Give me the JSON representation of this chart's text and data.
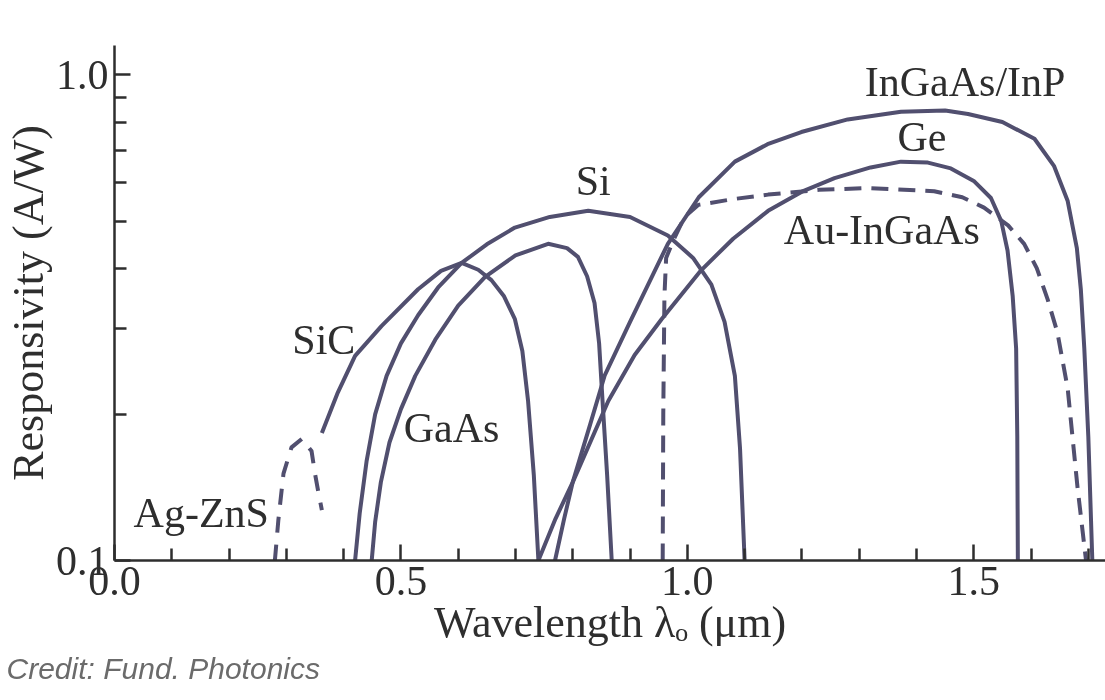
{
  "chart_data": {
    "type": "line",
    "xlabel": "Wavelength λₒ (μm)",
    "ylabel": "Responsivity (A/W)",
    "log": "y",
    "line_style": "solid",
    "xlim": [
      0,
      1.73
    ],
    "ylim": [
      0.1,
      1.15
    ],
    "xticks": [
      {
        "value": 0,
        "label": "0.0"
      },
      {
        "value": 0.1,
        "label": null
      },
      {
        "value": 0.2,
        "label": null
      },
      {
        "value": 0.3,
        "label": null
      },
      {
        "value": 0.4,
        "label": null
      },
      {
        "value": 0.5,
        "label": "0.5"
      },
      {
        "value": 0.6,
        "label": null
      },
      {
        "value": 0.7,
        "label": null
      },
      {
        "value": 0.8,
        "label": null
      },
      {
        "value": 0.9,
        "label": null
      },
      {
        "value": 1,
        "label": "1.0"
      },
      {
        "value": 1.1,
        "label": null
      },
      {
        "value": 1.2,
        "label": null
      },
      {
        "value": 1.3,
        "label": null
      },
      {
        "value": 1.4,
        "label": null
      },
      {
        "value": 1.5,
        "label": "1.5"
      },
      {
        "value": 1.6,
        "label": null
      },
      {
        "value": 1.7,
        "label": null
      }
    ],
    "yticks": [
      0.1,
      {
        "value": 0.2,
        "label": null
      },
      {
        "value": 0.3,
        "label": null
      },
      {
        "value": 0.4,
        "label": null
      },
      {
        "value": 0.5,
        "label": null
      },
      {
        "value": 0.6,
        "label": null
      },
      {
        "value": 0.7,
        "label": null
      },
      {
        "value": 0.8,
        "label": null
      },
      {
        "value": 0.9,
        "label": null
      },
      {
        "value": 1,
        "label": "1.0"
      }
    ],
    "annotations": [
      "Credit: Fund. Photonics"
    ],
    "series": [
      {
        "name": "Ag-ZnS",
        "color": "#514f6f",
        "line_style": "dashed",
        "x": [
          0.28,
          0.286,
          0.295,
          0.309,
          0.327,
          0.344,
          0.35,
          0.356,
          0.362
        ],
        "values": [
          0.1,
          0.121,
          0.151,
          0.171,
          0.178,
          0.168,
          0.151,
          0.138,
          0.127
        ]
      },
      {
        "name": "SiC",
        "color": "#514f6f",
        "x": [
          0.362,
          0.39,
          0.42,
          0.466,
          0.53,
          0.57,
          0.606,
          0.635,
          0.658,
          0.68,
          0.699,
          0.712,
          0.722,
          0.732,
          0.74
        ],
        "values": [
          0.183,
          0.222,
          0.264,
          0.304,
          0.362,
          0.395,
          0.41,
          0.397,
          0.378,
          0.35,
          0.314,
          0.27,
          0.213,
          0.15,
          0.1
        ]
      },
      {
        "name": "GaAs",
        "color": "#514f6f",
        "x": [
          0.449,
          0.455,
          0.465,
          0.48,
          0.5,
          0.525,
          0.56,
          0.6,
          0.647,
          0.7,
          0.757,
          0.79,
          0.809,
          0.825,
          0.838,
          0.846,
          0.852,
          0.86,
          0.868
        ],
        "values": [
          0.1,
          0.12,
          0.145,
          0.175,
          0.205,
          0.24,
          0.285,
          0.335,
          0.384,
          0.425,
          0.449,
          0.44,
          0.422,
          0.385,
          0.339,
          0.28,
          0.213,
          0.15,
          0.1
        ]
      },
      {
        "name": "Si",
        "color": "#514f6f",
        "x": [
          0.42,
          0.428,
          0.44,
          0.455,
          0.475,
          0.5,
          0.53,
          0.565,
          0.606,
          0.65,
          0.699,
          0.76,
          0.827,
          0.9,
          0.966,
          1.01,
          1.042,
          1.065,
          1.083,
          1.092,
          1.1
        ],
        "values": [
          0.1,
          0.125,
          0.16,
          0.2,
          0.24,
          0.28,
          0.32,
          0.365,
          0.41,
          0.448,
          0.485,
          0.51,
          0.525,
          0.51,
          0.467,
          0.42,
          0.37,
          0.31,
          0.24,
          0.17,
          0.1
        ]
      },
      {
        "name": "Ge",
        "color": "#514f6f",
        "x": [
          0.74,
          0.77,
          0.8,
          0.862,
          0.908,
          0.955,
          1.024,
          1.08,
          1.141,
          1.2,
          1.257,
          1.32,
          1.373,
          1.42,
          1.46,
          1.5,
          1.53,
          1.548,
          1.559,
          1.568,
          1.574,
          1.576,
          1.577
        ],
        "values": [
          0.1,
          0.122,
          0.145,
          0.213,
          0.265,
          0.314,
          0.396,
          0.46,
          0.525,
          0.575,
          0.613,
          0.645,
          0.663,
          0.66,
          0.642,
          0.605,
          0.558,
          0.5,
          0.435,
          0.35,
          0.273,
          0.18,
          0.1
        ]
      },
      {
        "name": "InGaAs/InP",
        "color": "#514f6f",
        "x": [
          0.769,
          0.785,
          0.8,
          0.83,
          0.856,
          0.9,
          0.966,
          1.02,
          1.083,
          1.14,
          1.199,
          1.28,
          1.373,
          1.45,
          1.49,
          1.55,
          1.606,
          1.64,
          1.664,
          1.68,
          1.687,
          1.693,
          1.7,
          1.707
        ],
        "values": [
          0.1,
          0.122,
          0.145,
          0.19,
          0.241,
          0.31,
          0.449,
          0.56,
          0.663,
          0.72,
          0.763,
          0.81,
          0.84,
          0.845,
          0.831,
          0.8,
          0.739,
          0.65,
          0.55,
          0.44,
          0.361,
          0.273,
          0.18,
          0.1
        ]
      },
      {
        "name": "Au-InGaAs",
        "color": "#514f6f",
        "line_style": "dashed",
        "x": [
          0.957,
          0.958,
          0.96,
          0.963,
          0.975,
          0.995,
          1.019,
          1.08,
          1.141,
          1.23,
          1.315,
          1.431,
          1.48,
          1.518,
          1.56,
          1.588,
          1.61,
          1.629,
          1.646,
          1.664,
          1.681,
          1.69,
          1.696
        ],
        "values": [
          0.1,
          0.2,
          0.35,
          0.42,
          0.455,
          0.51,
          0.54,
          0.555,
          0.567,
          0.58,
          0.585,
          0.576,
          0.56,
          0.533,
          0.49,
          0.449,
          0.4,
          0.345,
          0.295,
          0.226,
          0.142,
          0.115,
          0.1
        ]
      }
    ]
  }
}
